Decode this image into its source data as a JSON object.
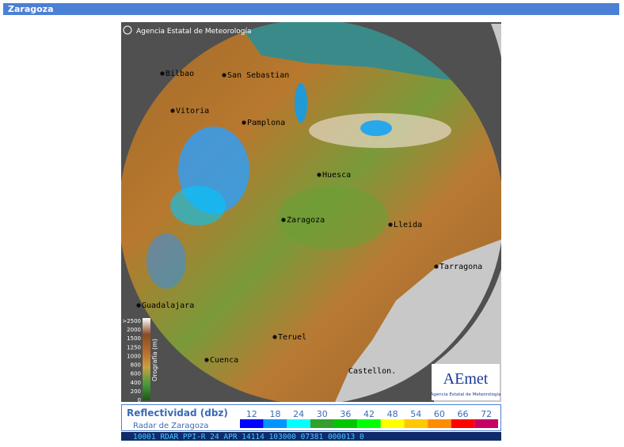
{
  "header": {
    "title": "Zaragoza"
  },
  "map": {
    "credit": "Agencia Estatal de Meteorología",
    "cities": [
      "Bilbao",
      "San Sebastian",
      "Vitoria",
      "Pamplona",
      "Huesca",
      "Zaragoza",
      "Lleida",
      "Tarragona",
      "Guadalajara",
      "Teruel",
      "Cuenca",
      "Castellon."
    ],
    "logo": {
      "name": "AEmet",
      "subtitle": "Agencia Estatal de Meteorología"
    }
  },
  "orography": {
    "label": "Orografía (m)",
    "ticks": [
      ">2500",
      "2000",
      "1500",
      "1250",
      "1000",
      "800",
      "600",
      "400",
      "200",
      "0"
    ]
  },
  "reflectivity": {
    "title": "Reflectividad (dbz)",
    "subtitle": "Radar de Zaragoza",
    "levels": [
      {
        "value": 12,
        "color": "#0000ff"
      },
      {
        "value": 18,
        "color": "#0096ff"
      },
      {
        "value": 24,
        "color": "#00ffff"
      },
      {
        "value": 30,
        "color": "#32a02d"
      },
      {
        "value": 36,
        "color": "#00c800"
      },
      {
        "value": 42,
        "color": "#00ff00"
      },
      {
        "value": 48,
        "color": "#ffff00"
      },
      {
        "value": 54,
        "color": "#ffc800"
      },
      {
        "value": 60,
        "color": "#ff8c00"
      },
      {
        "value": 66,
        "color": "#ff0000"
      },
      {
        "value": 72,
        "color": "#c80064"
      }
    ]
  },
  "status": "10001 RDAR_PPI-R   24 APR 14114 103000 07381 000013 0"
}
